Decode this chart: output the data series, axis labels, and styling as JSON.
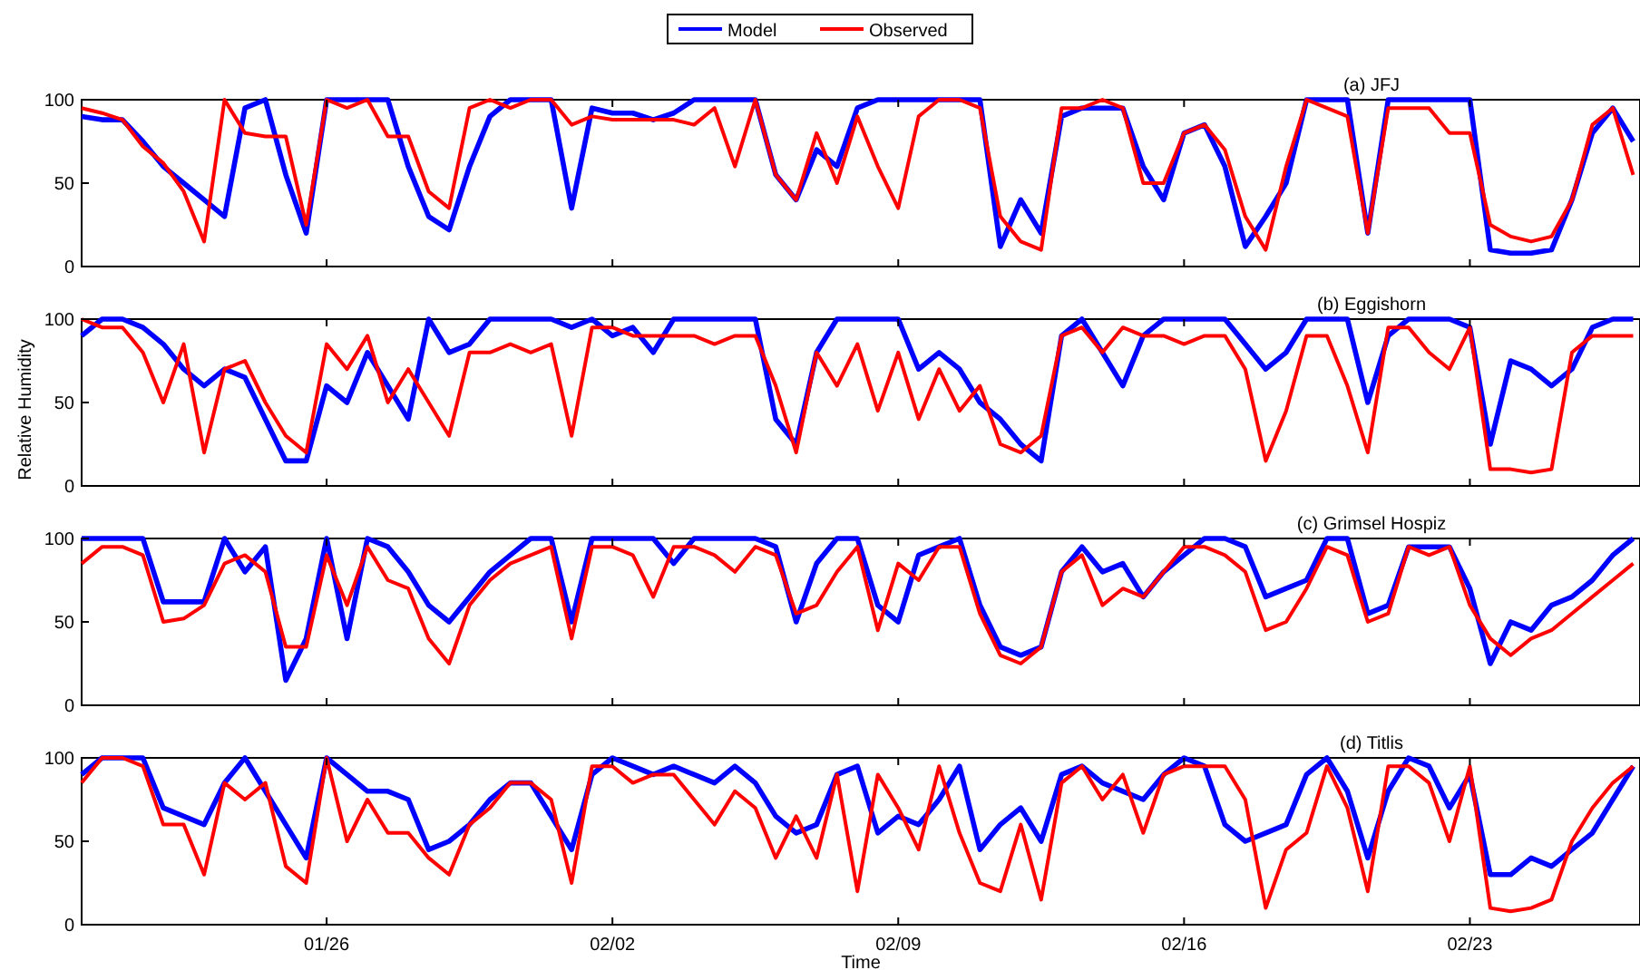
{
  "chart_data": [
    {
      "type": "line",
      "title": "(a) JFJ",
      "legend": "top",
      "tick_labels": "y",
      "ylim": [
        0,
        100
      ],
      "yticks": [
        0,
        50,
        100
      ],
      "xlim": [
        "--01-20T00:00",
        "--02-27T04:00"
      ],
      "xticks": [
        {
          "value": "--01-26",
          "label": null
        },
        {
          "value": "--02-02",
          "label": null
        },
        {
          "value": "--02-09",
          "label": null
        },
        {
          "value": "--02-16",
          "label": null
        },
        {
          "value": "--02-23",
          "label": null
        }
      ],
      "x": [
        "--01-20T00:00",
        "--01-20T12:00",
        "--01-21T00:00",
        "--01-21T12:00",
        "--01-22T00:00",
        "--01-22T12:00",
        "--01-23T00:00",
        "--01-23T12:00",
        "--01-24T00:00",
        "--01-24T12:00",
        "--01-25T00:00",
        "--01-25T12:00",
        "--01-26T00:00",
        "--01-26T12:00",
        "--01-27T00:00",
        "--01-27T12:00",
        "--01-28T00:00",
        "--01-28T12:00",
        "--01-29T00:00",
        "--01-29T12:00",
        "--01-30T00:00",
        "--01-30T12:00",
        "--01-31T00:00",
        "--01-31T12:00",
        "--02-01T00:00",
        "--02-01T12:00",
        "--02-02T00:00",
        "--02-02T12:00",
        "--02-03T00:00",
        "--02-03T12:00",
        "--02-04T00:00",
        "--02-04T12:00",
        "--02-05T00:00",
        "--02-05T12:00",
        "--02-06T00:00",
        "--02-06T12:00",
        "--02-07T00:00",
        "--02-07T12:00",
        "--02-08T00:00",
        "--02-08T12:00",
        "--02-09T00:00",
        "--02-09T12:00",
        "--02-10T00:00",
        "--02-10T12:00",
        "--02-11T00:00",
        "--02-11T12:00",
        "--02-12T00:00",
        "--02-12T12:00",
        "--02-13T00:00",
        "--02-13T12:00",
        "--02-14T00:00",
        "--02-14T12:00",
        "--02-15T00:00",
        "--02-15T12:00",
        "--02-16T00:00",
        "--02-16T12:00",
        "--02-17T00:00",
        "--02-17T12:00",
        "--02-18T00:00",
        "--02-18T12:00",
        "--02-19T00:00",
        "--02-19T12:00",
        "--02-20T00:00",
        "--02-20T12:00",
        "--02-21T00:00",
        "--02-21T12:00",
        "--02-22T00:00",
        "--02-22T12:00",
        "--02-23T00:00",
        "--02-23T12:00",
        "--02-24T00:00",
        "--02-24T12:00",
        "--02-25T00:00",
        "--02-25T12:00",
        "--02-26T00:00",
        "--02-26T12:00",
        "--02-27T00:00"
      ],
      "series": [
        {
          "name": "Model",
          "color": "#0000ff",
          "values": [
            90,
            88,
            88,
            75,
            60,
            50,
            40,
            30,
            95,
            100,
            55,
            20,
            100,
            100,
            100,
            100,
            60,
            30,
            22,
            60,
            90,
            100,
            100,
            100,
            35,
            95,
            92,
            92,
            88,
            92,
            100,
            100,
            100,
            100,
            55,
            40,
            70,
            60,
            95,
            100,
            100,
            100,
            100,
            100,
            100,
            12,
            40,
            20,
            90,
            95,
            95,
            95,
            60,
            40,
            80,
            85,
            60,
            12,
            30,
            50,
            100,
            100,
            100,
            20,
            100,
            100,
            100,
            100,
            100,
            10,
            8,
            8,
            10,
            40,
            80,
            95,
            75
          ]
        },
        {
          "name": "Observed",
          "color": "#ff0000",
          "values": [
            95,
            92,
            88,
            72,
            62,
            45,
            15,
            100,
            80,
            78,
            78,
            25,
            100,
            95,
            100,
            78,
            78,
            45,
            35,
            95,
            100,
            95,
            100,
            100,
            85,
            90,
            88,
            88,
            88,
            88,
            85,
            95,
            60,
            100,
            55,
            40,
            80,
            50,
            90,
            60,
            35,
            90,
            100,
            100,
            95,
            30,
            15,
            10,
            95,
            95,
            100,
            95,
            50,
            50,
            80,
            85,
            70,
            30,
            10,
            60,
            100,
            95,
            90,
            20,
            95,
            95,
            95,
            80,
            80,
            25,
            18,
            15,
            18,
            40,
            85,
            95,
            55
          ]
        }
      ]
    },
    {
      "type": "line",
      "title": "(b) Eggishorn",
      "ylabel": "Relative Humidity",
      "tick_labels": "y",
      "ylim": [
        0,
        100
      ],
      "yticks": [
        0,
        50,
        100
      ],
      "xlim": [
        "--01-20T00:00",
        "--02-27T04:00"
      ],
      "xticks": [
        {
          "value": "--01-26",
          "label": null
        },
        {
          "value": "--02-02",
          "label": null
        },
        {
          "value": "--02-09",
          "label": null
        },
        {
          "value": "--02-16",
          "label": null
        },
        {
          "value": "--02-23",
          "label": null
        }
      ],
      "x": [
        "--01-20T00:00",
        "--01-20T12:00",
        "--01-21T00:00",
        "--01-21T12:00",
        "--01-22T00:00",
        "--01-22T12:00",
        "--01-23T00:00",
        "--01-23T12:00",
        "--01-24T00:00",
        "--01-24T12:00",
        "--01-25T00:00",
        "--01-25T12:00",
        "--01-26T00:00",
        "--01-26T12:00",
        "--01-27T00:00",
        "--01-27T12:00",
        "--01-28T00:00",
        "--01-28T12:00",
        "--01-29T00:00",
        "--01-29T12:00",
        "--01-30T00:00",
        "--01-30T12:00",
        "--01-31T00:00",
        "--01-31T12:00",
        "--02-01T00:00",
        "--02-01T12:00",
        "--02-02T00:00",
        "--02-02T12:00",
        "--02-03T00:00",
        "--02-03T12:00",
        "--02-04T00:00",
        "--02-04T12:00",
        "--02-05T00:00",
        "--02-05T12:00",
        "--02-06T00:00",
        "--02-06T12:00",
        "--02-07T00:00",
        "--02-07T12:00",
        "--02-08T00:00",
        "--02-08T12:00",
        "--02-09T00:00",
        "--02-09T12:00",
        "--02-10T00:00",
        "--02-10T12:00",
        "--02-11T00:00",
        "--02-11T12:00",
        "--02-12T00:00",
        "--02-12T12:00",
        "--02-13T00:00",
        "--02-13T12:00",
        "--02-14T00:00",
        "--02-14T12:00",
        "--02-15T00:00",
        "--02-15T12:00",
        "--02-16T00:00",
        "--02-16T12:00",
        "--02-17T00:00",
        "--02-17T12:00",
        "--02-18T00:00",
        "--02-18T12:00",
        "--02-19T00:00",
        "--02-19T12:00",
        "--02-20T00:00",
        "--02-20T12:00",
        "--02-21T00:00",
        "--02-21T12:00",
        "--02-22T00:00",
        "--02-22T12:00",
        "--02-23T00:00",
        "--02-23T12:00",
        "--02-24T00:00",
        "--02-24T12:00",
        "--02-25T00:00",
        "--02-25T12:00",
        "--02-26T00:00",
        "--02-26T12:00",
        "--02-27T00:00"
      ],
      "series": [
        {
          "color": "#0000ff",
          "values": [
            90,
            100,
            100,
            95,
            85,
            70,
            60,
            70,
            65,
            40,
            15,
            15,
            60,
            50,
            80,
            60,
            40,
            100,
            80,
            85,
            100,
            100,
            100,
            100,
            95,
            100,
            90,
            95,
            80,
            100,
            100,
            100,
            100,
            100,
            40,
            25,
            80,
            100,
            100,
            100,
            100,
            70,
            80,
            70,
            50,
            40,
            25,
            15,
            90,
            100,
            80,
            60,
            90,
            100,
            100,
            100,
            100,
            85,
            70,
            80,
            100,
            100,
            100,
            50,
            90,
            100,
            100,
            100,
            95,
            25,
            75,
            70,
            60,
            70,
            95,
            100,
            100
          ]
        },
        {
          "color": "#ff0000",
          "values": [
            100,
            95,
            95,
            80,
            50,
            85,
            20,
            70,
            75,
            50,
            30,
            20,
            85,
            70,
            90,
            50,
            70,
            50,
            30,
            80,
            80,
            85,
            80,
            85,
            30,
            95,
            95,
            90,
            90,
            90,
            90,
            85,
            90,
            90,
            60,
            20,
            80,
            60,
            85,
            45,
            80,
            40,
            70,
            45,
            60,
            25,
            20,
            30,
            90,
            95,
            80,
            95,
            90,
            90,
            85,
            90,
            90,
            70,
            15,
            45,
            90,
            90,
            60,
            20,
            95,
            95,
            80,
            70,
            95,
            10,
            10,
            8,
            10,
            80,
            90,
            90,
            90
          ]
        }
      ]
    },
    {
      "type": "line",
      "title": "(c) Grimsel Hospiz",
      "tick_labels": "y",
      "ylim": [
        0,
        100
      ],
      "yticks": [
        0,
        50,
        100
      ],
      "xlim": [
        "--01-20T00:00",
        "--02-27T04:00"
      ],
      "xticks": [
        {
          "value": "--01-26",
          "label": null
        },
        {
          "value": "--02-02",
          "label": null
        },
        {
          "value": "--02-09",
          "label": null
        },
        {
          "value": "--02-16",
          "label": null
        },
        {
          "value": "--02-23",
          "label": null
        }
      ],
      "x": [
        "--01-20T00:00",
        "--01-20T12:00",
        "--01-21T00:00",
        "--01-21T12:00",
        "--01-22T00:00",
        "--01-22T12:00",
        "--01-23T00:00",
        "--01-23T12:00",
        "--01-24T00:00",
        "--01-24T12:00",
        "--01-25T00:00",
        "--01-25T12:00",
        "--01-26T00:00",
        "--01-26T12:00",
        "--01-27T00:00",
        "--01-27T12:00",
        "--01-28T00:00",
        "--01-28T12:00",
        "--01-29T00:00",
        "--01-29T12:00",
        "--01-30T00:00",
        "--01-30T12:00",
        "--01-31T00:00",
        "--01-31T12:00",
        "--02-01T00:00",
        "--02-01T12:00",
        "--02-02T00:00",
        "--02-02T12:00",
        "--02-03T00:00",
        "--02-03T12:00",
        "--02-04T00:00",
        "--02-04T12:00",
        "--02-05T00:00",
        "--02-05T12:00",
        "--02-06T00:00",
        "--02-06T12:00",
        "--02-07T00:00",
        "--02-07T12:00",
        "--02-08T00:00",
        "--02-08T12:00",
        "--02-09T00:00",
        "--02-09T12:00",
        "--02-10T00:00",
        "--02-10T12:00",
        "--02-11T00:00",
        "--02-11T12:00",
        "--02-12T00:00",
        "--02-12T12:00",
        "--02-13T00:00",
        "--02-13T12:00",
        "--02-14T00:00",
        "--02-14T12:00",
        "--02-15T00:00",
        "--02-15T12:00",
        "--02-16T00:00",
        "--02-16T12:00",
        "--02-17T00:00",
        "--02-17T12:00",
        "--02-18T00:00",
        "--02-18T12:00",
        "--02-19T00:00",
        "--02-19T12:00",
        "--02-20T00:00",
        "--02-20T12:00",
        "--02-21T00:00",
        "--02-21T12:00",
        "--02-22T00:00",
        "--02-22T12:00",
        "--02-23T00:00",
        "--02-23T12:00",
        "--02-24T00:00",
        "--02-24T12:00",
        "--02-25T00:00",
        "--02-25T12:00",
        "--02-26T00:00",
        "--02-26T12:00",
        "--02-27T00:00"
      ],
      "series": [
        {
          "color": "#0000ff",
          "values": [
            100,
            100,
            100,
            100,
            62,
            62,
            62,
            100,
            80,
            95,
            15,
            40,
            100,
            40,
            100,
            95,
            80,
            60,
            50,
            65,
            80,
            90,
            100,
            100,
            50,
            100,
            100,
            100,
            100,
            85,
            100,
            100,
            100,
            100,
            95,
            50,
            85,
            100,
            100,
            60,
            50,
            90,
            95,
            100,
            60,
            35,
            30,
            35,
            80,
            95,
            80,
            85,
            65,
            80,
            90,
            100,
            100,
            95,
            65,
            70,
            75,
            100,
            100,
            55,
            60,
            95,
            95,
            95,
            70,
            25,
            50,
            45,
            60,
            65,
            75,
            90,
            100
          ]
        },
        {
          "color": "#ff0000",
          "values": [
            85,
            95,
            95,
            90,
            50,
            52,
            60,
            85,
            90,
            80,
            35,
            35,
            90,
            60,
            95,
            75,
            70,
            40,
            25,
            60,
            75,
            85,
            90,
            95,
            40,
            95,
            95,
            90,
            65,
            95,
            95,
            90,
            80,
            95,
            90,
            55,
            60,
            80,
            95,
            45,
            85,
            75,
            95,
            95,
            55,
            30,
            25,
            35,
            80,
            90,
            60,
            70,
            65,
            80,
            95,
            95,
            90,
            80,
            45,
            50,
            70,
            95,
            90,
            50,
            55,
            95,
            90,
            95,
            60,
            40,
            30,
            40,
            45,
            55,
            65,
            75,
            85
          ]
        }
      ]
    },
    {
      "type": "line",
      "title": "(d) Titlis",
      "xlabel": "Time",
      "ylim": [
        0,
        100
      ],
      "yticks": [
        0,
        50,
        100
      ],
      "xlim": [
        "--01-20T00:00",
        "--02-27T04:00"
      ],
      "xticks": [
        {
          "value": "--01-26",
          "label": "01/26"
        },
        {
          "value": "--02-02",
          "label": "02/02"
        },
        {
          "value": "--02-09",
          "label": "02/09"
        },
        {
          "value": "--02-16",
          "label": "02/16"
        },
        {
          "value": "--02-23",
          "label": "02/23"
        }
      ],
      "x": [
        "--01-20T00:00",
        "--01-20T12:00",
        "--01-21T00:00",
        "--01-21T12:00",
        "--01-22T00:00",
        "--01-22T12:00",
        "--01-23T00:00",
        "--01-23T12:00",
        "--01-24T00:00",
        "--01-24T12:00",
        "--01-25T00:00",
        "--01-25T12:00",
        "--01-26T00:00",
        "--01-26T12:00",
        "--01-27T00:00",
        "--01-27T12:00",
        "--01-28T00:00",
        "--01-28T12:00",
        "--01-29T00:00",
        "--01-29T12:00",
        "--01-30T00:00",
        "--01-30T12:00",
        "--01-31T00:00",
        "--01-31T12:00",
        "--02-01T00:00",
        "--02-01T12:00",
        "--02-02T00:00",
        "--02-02T12:00",
        "--02-03T00:00",
        "--02-03T12:00",
        "--02-04T00:00",
        "--02-04T12:00",
        "--02-05T00:00",
        "--02-05T12:00",
        "--02-06T00:00",
        "--02-06T12:00",
        "--02-07T00:00",
        "--02-07T12:00",
        "--02-08T00:00",
        "--02-08T12:00",
        "--02-09T00:00",
        "--02-09T12:00",
        "--02-10T00:00",
        "--02-10T12:00",
        "--02-11T00:00",
        "--02-11T12:00",
        "--02-12T00:00",
        "--02-12T12:00",
        "--02-13T00:00",
        "--02-13T12:00",
        "--02-14T00:00",
        "--02-14T12:00",
        "--02-15T00:00",
        "--02-15T12:00",
        "--02-16T00:00",
        "--02-16T12:00",
        "--02-17T00:00",
        "--02-17T12:00",
        "--02-18T00:00",
        "--02-18T12:00",
        "--02-19T00:00",
        "--02-19T12:00",
        "--02-20T00:00",
        "--02-20T12:00",
        "--02-21T00:00",
        "--02-21T12:00",
        "--02-22T00:00",
        "--02-22T12:00",
        "--02-23T00:00",
        "--02-23T12:00",
        "--02-24T00:00",
        "--02-24T12:00",
        "--02-25T00:00",
        "--02-25T12:00",
        "--02-26T00:00",
        "--02-26T12:00",
        "--02-27T00:00"
      ],
      "series": [
        {
          "color": "#0000ff",
          "values": [
            90,
            100,
            100,
            100,
            70,
            65,
            60,
            85,
            100,
            80,
            60,
            40,
            100,
            90,
            80,
            80,
            75,
            45,
            50,
            60,
            75,
            85,
            85,
            65,
            45,
            90,
            100,
            95,
            90,
            95,
            90,
            85,
            95,
            85,
            65,
            55,
            60,
            90,
            95,
            55,
            65,
            60,
            75,
            95,
            45,
            60,
            70,
            50,
            90,
            95,
            85,
            80,
            75,
            90,
            100,
            95,
            60,
            50,
            55,
            60,
            90,
            100,
            80,
            40,
            80,
            100,
            95,
            70,
            90,
            30,
            30,
            40,
            35,
            45,
            55,
            75,
            95
          ]
        },
        {
          "color": "#ff0000",
          "values": [
            85,
            100,
            100,
            95,
            60,
            60,
            30,
            85,
            75,
            85,
            35,
            25,
            100,
            50,
            75,
            55,
            55,
            40,
            30,
            60,
            70,
            85,
            85,
            75,
            25,
            95,
            95,
            85,
            90,
            90,
            75,
            60,
            80,
            70,
            40,
            65,
            40,
            90,
            20,
            90,
            70,
            45,
            95,
            55,
            25,
            20,
            60,
            15,
            85,
            95,
            75,
            90,
            55,
            90,
            95,
            95,
            95,
            75,
            10,
            45,
            55,
            95,
            70,
            20,
            95,
            95,
            85,
            50,
            95,
            10,
            8,
            10,
            15,
            50,
            70,
            85,
            95
          ]
        }
      ]
    }
  ]
}
